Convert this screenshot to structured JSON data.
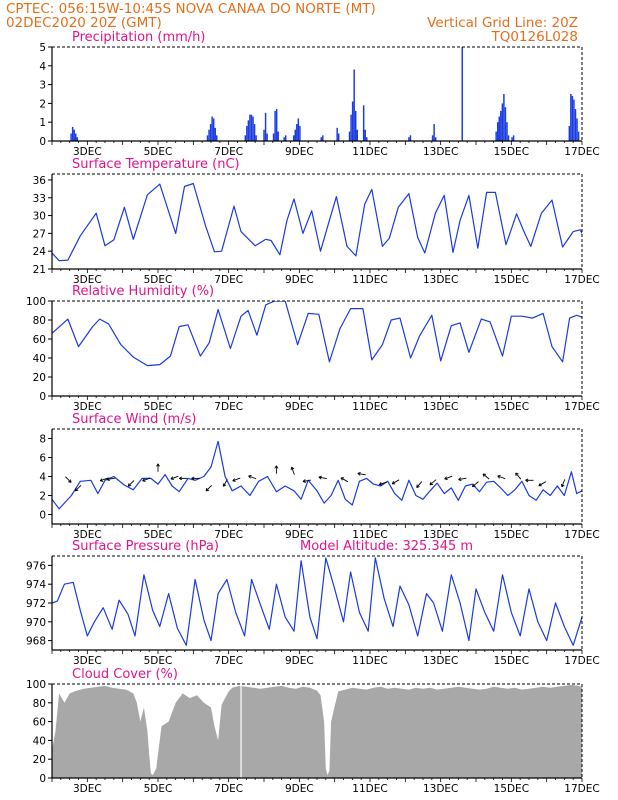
{
  "header": {
    "line1_left": "CPTEC:   056:15W-10:45S   NOVA CANAA DO NORTE (MT)",
    "line2_left": "02DEC2020 20Z (GMT)",
    "line2_right": "Vertical Grid Line: 20Z",
    "line3_right": "TQ0126L028"
  },
  "colors": {
    "header": "#e46f1b",
    "panel_title": "#e0148c",
    "line": "#1a3be0",
    "bar": "#1a3be0",
    "cloud": "#a8a8a8",
    "axis": "#000000"
  },
  "x_axis": {
    "start_day": 2,
    "end_day": 17,
    "tick_labels": [
      "3DEC",
      "5DEC",
      "7DEC",
      "9DEC",
      "11DEC",
      "13DEC",
      "15DEC",
      "17DEC"
    ],
    "tick_days": [
      3,
      5,
      7,
      9,
      11,
      13,
      15,
      17
    ]
  },
  "chart_data": [
    {
      "type": "bar",
      "title": "Precipitation (mm/h)",
      "ylim": [
        0,
        5
      ],
      "yticks": [
        0,
        1,
        2,
        3,
        4,
        5
      ],
      "bursts": [
        {
          "day": 2.52,
          "values": [
            0.4,
            0.75,
            0.6,
            0.4,
            0.2
          ]
        },
        {
          "day": 6.38,
          "values": [
            0.3,
            0.6,
            0.9,
            1.3,
            1.2,
            0.7,
            0.3
          ]
        },
        {
          "day": 7.45,
          "values": [
            0.3,
            0.8,
            1.1,
            1.4,
            1.4,
            1.3,
            0.9,
            0.3
          ]
        },
        {
          "day": 7.98,
          "values": [
            0.6,
            1.5,
            0.4
          ]
        },
        {
          "day": 8.25,
          "values": [
            0.4,
            1.6,
            1.7,
            0.5
          ]
        },
        {
          "day": 8.55,
          "values": [
            0.2,
            0.3
          ]
        },
        {
          "day": 8.82,
          "values": [
            0.3,
            0.6,
            0.9,
            1.2,
            0.8
          ]
        },
        {
          "day": 9.6,
          "values": [
            0.2,
            0.3
          ]
        },
        {
          "day": 10.05,
          "values": [
            0.7,
            0.4
          ]
        },
        {
          "day": 10.4,
          "values": [
            0.5,
            1.4,
            2.1,
            3.8,
            1.6,
            0.6
          ]
        },
        {
          "day": 10.8,
          "values": [
            1.9,
            0.6,
            0.2
          ]
        },
        {
          "day": 12.08,
          "values": [
            0.2,
            0.3
          ]
        },
        {
          "day": 12.75,
          "values": [
            0.3,
            0.9,
            0.2
          ]
        },
        {
          "day": 13.59,
          "values": [
            5.0
          ]
        },
        {
          "day": 14.55,
          "values": [
            0.5,
            1.0,
            1.3,
            1.6,
            2.0,
            2.5,
            1.8,
            1.0,
            0.3
          ]
        },
        {
          "day": 15.0,
          "values": [
            0.2,
            0.3
          ]
        },
        {
          "day": 16.62,
          "values": [
            0.8,
            2.5,
            2.4,
            2.2,
            1.7,
            1.2,
            0.5
          ]
        }
      ]
    },
    {
      "type": "line",
      "title": "Surface Temperature (nC)",
      "ylim": [
        21,
        37
      ],
      "yticks": [
        21,
        24,
        27,
        30,
        33,
        36
      ],
      "x": [
        2,
        2.2,
        2.45,
        2.8,
        3.25,
        3.5,
        3.75,
        4.05,
        4.3,
        4.7,
        5.05,
        5.5,
        5.75,
        6.0,
        6.35,
        6.6,
        6.8,
        7.15,
        7.35,
        7.75,
        8.05,
        8.2,
        8.45,
        8.65,
        8.85,
        9.1,
        9.35,
        9.6,
        9.85,
        10.05,
        10.35,
        10.6,
        10.85,
        11.05,
        11.35,
        11.55,
        11.8,
        12.1,
        12.35,
        12.55,
        12.85,
        13.1,
        13.35,
        13.55,
        13.8,
        14.05,
        14.3,
        14.55,
        14.85,
        15.15,
        15.35,
        15.55,
        15.85,
        16.15,
        16.45,
        16.75,
        16.95,
        17
      ],
      "y": [
        23.7,
        22.4,
        22.5,
        26.6,
        30.4,
        24.9,
        25.9,
        31.4,
        26.0,
        33.5,
        35.3,
        27.0,
        34.9,
        35.4,
        28.2,
        23.9,
        24.0,
        31.6,
        27.3,
        24.9,
        26.0,
        25.8,
        23.4,
        29.2,
        32.8,
        27.0,
        30.8,
        24.0,
        29.2,
        33.2,
        24.8,
        23.2,
        31.9,
        34.4,
        24.8,
        26.2,
        31.4,
        33.7,
        26.3,
        23.7,
        30.4,
        33.4,
        23.8,
        29.2,
        33.4,
        24.5,
        33.9,
        33.9,
        25.1,
        30.3,
        27.4,
        24.8,
        30.4,
        32.6,
        24.7,
        27.3,
        27.6,
        27.0
      ]
    },
    {
      "type": "line",
      "title": "Relative Humidity (%)",
      "ylim": [
        0,
        100
      ],
      "yticks": [
        0,
        20,
        40,
        60,
        80,
        100
      ],
      "x": [
        2,
        2.45,
        2.75,
        3.15,
        3.35,
        3.6,
        3.95,
        4.3,
        4.7,
        5.05,
        5.35,
        5.6,
        5.85,
        6.2,
        6.45,
        6.7,
        7.05,
        7.35,
        7.55,
        7.8,
        8.05,
        8.3,
        8.6,
        8.95,
        9.25,
        9.55,
        9.85,
        10.15,
        10.45,
        10.8,
        11.05,
        11.35,
        11.6,
        11.85,
        12.15,
        12.4,
        12.75,
        13.0,
        13.3,
        13.55,
        13.8,
        14.15,
        14.4,
        14.75,
        15.0,
        15.3,
        15.6,
        15.9,
        16.15,
        16.45,
        16.65,
        16.85,
        17
      ],
      "y": [
        66,
        81,
        52,
        73,
        81,
        76,
        54,
        41,
        32,
        33,
        42,
        73,
        75,
        42,
        56,
        91,
        50,
        84,
        90,
        64,
        96,
        100,
        100,
        54,
        87,
        86,
        36,
        71,
        92,
        92,
        38,
        54,
        80,
        82,
        40,
        63,
        85,
        37,
        74,
        77,
        46,
        81,
        78,
        42,
        84,
        84,
        82,
        87,
        52,
        36,
        82,
        85,
        83
      ]
    },
    {
      "type": "line",
      "title": "Surface Wind (m/s)",
      "ylim": [
        -1,
        9
      ],
      "yticks": [
        0,
        2,
        4,
        6,
        8
      ],
      "x": [
        2,
        2.2,
        2.35,
        2.55,
        2.8,
        3.1,
        3.3,
        3.5,
        3.75,
        4.05,
        4.3,
        4.55,
        4.8,
        5.0,
        5.2,
        5.4,
        5.6,
        5.85,
        6.05,
        6.3,
        6.5,
        6.7,
        6.9,
        7.1,
        7.35,
        7.6,
        7.85,
        8.1,
        8.35,
        8.6,
        8.85,
        9.05,
        9.25,
        9.5,
        9.7,
        9.9,
        10.1,
        10.3,
        10.5,
        10.7,
        10.9,
        11.1,
        11.3,
        11.5,
        11.7,
        11.9,
        12.1,
        12.3,
        12.5,
        12.7,
        12.9,
        13.1,
        13.3,
        13.5,
        13.7,
        13.9,
        14.1,
        14.3,
        14.5,
        14.7,
        14.9,
        15.1,
        15.3,
        15.5,
        15.7,
        15.9,
        16.1,
        16.3,
        16.5,
        16.7,
        16.85,
        17
      ],
      "y": [
        1.6,
        0.6,
        1.2,
        2.0,
        3.5,
        3.6,
        2.2,
        3.6,
        4.0,
        3.1,
        2.6,
        3.8,
        3.8,
        3.2,
        4.2,
        3.0,
        2.4,
        3.8,
        3.6,
        4.0,
        5.0,
        7.7,
        4.0,
        2.5,
        3.0,
        2.0,
        3.5,
        4.0,
        2.4,
        3.0,
        2.5,
        1.6,
        3.6,
        2.5,
        1.2,
        2.0,
        3.6,
        1.6,
        1.0,
        3.5,
        3.8,
        3.2,
        3.0,
        3.5,
        2.2,
        1.5,
        3.6,
        2.0,
        1.6,
        2.5,
        3.3,
        2.2,
        2.8,
        1.5,
        3.0,
        3.2,
        2.4,
        3.4,
        3.5,
        2.8,
        2.0,
        2.6,
        3.5,
        2.0,
        1.5,
        2.6,
        2.0,
        3.0,
        2.0,
        4.5,
        2.2,
        2.5
      ],
      "arrows": [
        {
          "day": 2.4,
          "y": 3.9,
          "deg": 315
        },
        {
          "day": 2.8,
          "y": 3.0,
          "deg": 225
        },
        {
          "day": 3.55,
          "y": 3.8,
          "deg": 200
        },
        {
          "day": 3.75,
          "y": 3.8,
          "deg": 190
        },
        {
          "day": 4.3,
          "y": 3.5,
          "deg": 225
        },
        {
          "day": 4.75,
          "y": 3.8,
          "deg": 200
        },
        {
          "day": 5.0,
          "y": 4.6,
          "deg": 90
        },
        {
          "day": 5.55,
          "y": 4.0,
          "deg": 200
        },
        {
          "day": 5.8,
          "y": 3.8,
          "deg": 180
        },
        {
          "day": 6.15,
          "y": 3.8,
          "deg": 180
        },
        {
          "day": 6.5,
          "y": 3.0,
          "deg": 225
        },
        {
          "day": 6.95,
          "y": 3.6,
          "deg": 240
        },
        {
          "day": 7.3,
          "y": 3.8,
          "deg": 200
        },
        {
          "day": 7.75,
          "y": 3.8,
          "deg": 160
        },
        {
          "day": 8.35,
          "y": 4.4,
          "deg": 90
        },
        {
          "day": 8.85,
          "y": 4.3,
          "deg": 110
        },
        {
          "day": 9.3,
          "y": 3.6,
          "deg": 190
        },
        {
          "day": 9.75,
          "y": 3.8,
          "deg": 170
        },
        {
          "day": 10.35,
          "y": 3.5,
          "deg": 150
        },
        {
          "day": 10.85,
          "y": 4.2,
          "deg": 170
        },
        {
          "day": 11.45,
          "y": 3.4,
          "deg": 200
        },
        {
          "day": 11.8,
          "y": 3.6,
          "deg": 210
        },
        {
          "day": 12.45,
          "y": 3.4,
          "deg": 230
        },
        {
          "day": 12.85,
          "y": 3.6,
          "deg": 220
        },
        {
          "day": 13.3,
          "y": 4.0,
          "deg": 200
        },
        {
          "day": 13.7,
          "y": 3.8,
          "deg": 190
        },
        {
          "day": 14.05,
          "y": 3.4,
          "deg": 220
        },
        {
          "day": 14.35,
          "y": 3.8,
          "deg": 140
        },
        {
          "day": 14.8,
          "y": 3.8,
          "deg": 160
        },
        {
          "day": 15.25,
          "y": 3.8,
          "deg": 130
        },
        {
          "day": 15.6,
          "y": 3.6,
          "deg": 180
        },
        {
          "day": 15.95,
          "y": 3.4,
          "deg": 210
        },
        {
          "day": 16.5,
          "y": 3.6,
          "deg": 250
        }
      ]
    },
    {
      "type": "line",
      "title": "Surface Pressure (hPa)",
      "annotation": "Model Altitude: 325.345 m",
      "ylim": [
        967,
        977
      ],
      "yticks": [
        968,
        970,
        972,
        974,
        976
      ],
      "x": [
        2,
        2.15,
        2.35,
        2.6,
        2.8,
        3.0,
        3.2,
        3.45,
        3.7,
        3.9,
        4.15,
        4.35,
        4.6,
        4.85,
        5.05,
        5.3,
        5.55,
        5.8,
        6.05,
        6.3,
        6.5,
        6.7,
        6.95,
        7.2,
        7.45,
        7.65,
        7.9,
        8.15,
        8.35,
        8.6,
        8.85,
        9.05,
        9.3,
        9.5,
        9.75,
        10.0,
        10.25,
        10.45,
        10.7,
        10.95,
        11.15,
        11.4,
        11.65,
        11.85,
        12.1,
        12.35,
        12.6,
        12.8,
        13.05,
        13.3,
        13.55,
        13.8,
        14.0,
        14.25,
        14.5,
        14.75,
        15.0,
        15.25,
        15.5,
        15.75,
        16.0,
        16.25,
        16.5,
        16.75,
        17
      ],
      "y": [
        972.0,
        972.2,
        974.0,
        974.2,
        971.2,
        968.5,
        970.0,
        971.5,
        969.2,
        972.3,
        970.8,
        968.5,
        975.0,
        971.2,
        969.5,
        973.0,
        969.3,
        967.5,
        974.5,
        970.2,
        968.0,
        973.0,
        974.5,
        971.0,
        968.5,
        974.5,
        971.8,
        969.2,
        974.0,
        970.5,
        969.0,
        976.5,
        970.5,
        968.2,
        976.8,
        973.5,
        970.0,
        975.3,
        971.0,
        969.0,
        976.8,
        972.5,
        969.5,
        973.8,
        971.8,
        968.5,
        973.0,
        972.0,
        969.0,
        975.0,
        972.0,
        968.0,
        973.5,
        971.0,
        969.0,
        975.0,
        971.0,
        968.5,
        973.5,
        970.0,
        968.0,
        972.0,
        969.5,
        967.5,
        970.5
      ]
    },
    {
      "type": "area",
      "title": "Cloud Cover (%)",
      "ylim": [
        0,
        100
      ],
      "yticks": [
        0,
        20,
        40,
        60,
        80,
        100
      ],
      "x": [
        2,
        2.1,
        2.2,
        2.35,
        2.5,
        2.7,
        2.9,
        3.1,
        3.3,
        3.5,
        3.7,
        3.9,
        4.1,
        4.3,
        4.4,
        4.5,
        4.6,
        4.7,
        4.75,
        4.8,
        4.85,
        4.95,
        5.1,
        5.3,
        5.5,
        5.7,
        5.9,
        6.1,
        6.3,
        6.5,
        6.6,
        6.7,
        6.8,
        6.9,
        7.0,
        7.1,
        7.3,
        7.5,
        7.7,
        7.9,
        8.1,
        8.3,
        8.5,
        8.7,
        8.9,
        9.1,
        9.3,
        9.5,
        9.6,
        9.7,
        9.75,
        9.8,
        9.85,
        9.9,
        10.1,
        10.3,
        10.5,
        10.7,
        10.9,
        11.1,
        11.3,
        11.5,
        11.7,
        11.9,
        12.1,
        12.3,
        12.5,
        12.7,
        12.9,
        13.1,
        13.3,
        13.5,
        13.7,
        13.9,
        14.1,
        14.3,
        14.5,
        14.7,
        14.9,
        15.1,
        15.3,
        15.5,
        15.7,
        15.9,
        16.1,
        16.3,
        16.5,
        16.7,
        16.9,
        17
      ],
      "y": [
        30,
        50,
        90,
        80,
        90,
        93,
        95,
        96,
        97,
        98,
        96,
        95,
        94,
        90,
        80,
        60,
        75,
        50,
        25,
        5,
        3,
        10,
        55,
        60,
        80,
        90,
        85,
        88,
        80,
        75,
        55,
        40,
        78,
        85,
        92,
        96,
        98,
        97,
        96,
        95,
        96,
        97,
        98,
        96,
        95,
        97,
        96,
        93,
        88,
        60,
        10,
        3,
        8,
        60,
        92,
        94,
        96,
        95,
        94,
        96,
        97,
        95,
        96,
        95,
        94,
        96,
        95,
        96,
        94,
        95,
        96,
        97,
        96,
        95,
        94,
        95,
        97,
        96,
        95,
        96,
        94,
        95,
        96,
        97,
        96,
        97,
        98,
        99,
        98,
        97
      ]
    }
  ]
}
